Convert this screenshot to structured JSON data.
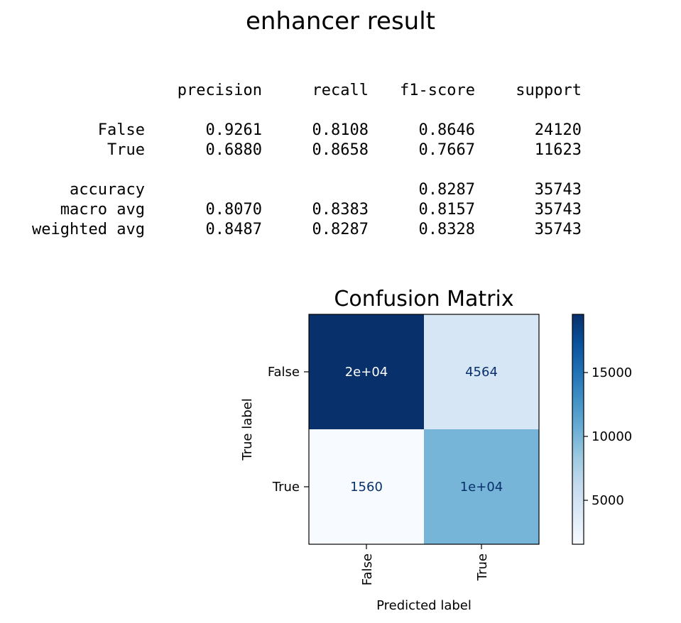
{
  "figure_title": "enhancer result",
  "report": {
    "headers": [
      "precision",
      "recall",
      "f1-score",
      "support"
    ],
    "rows": [
      {
        "label": "False",
        "values": [
          "0.9261",
          "0.8108",
          "0.8646",
          "24120"
        ]
      },
      {
        "label": "True",
        "values": [
          "0.6880",
          "0.8658",
          "0.7667",
          "11623"
        ]
      },
      {
        "label": "",
        "values": [
          "",
          "",
          "",
          ""
        ]
      },
      {
        "label": "accuracy",
        "values": [
          "",
          "",
          "0.8287",
          "35743"
        ]
      },
      {
        "label": "macro avg",
        "values": [
          "0.8070",
          "0.8383",
          "0.8157",
          "35743"
        ]
      },
      {
        "label": "weighted avg",
        "values": [
          "0.8487",
          "0.8287",
          "0.8328",
          "35743"
        ]
      }
    ]
  },
  "chart_data": {
    "type": "heatmap",
    "title": "Confusion Matrix",
    "xlabel": "Predicted label",
    "ylabel": "True label",
    "x_categories": [
      "False",
      "True"
    ],
    "y_categories": [
      "False",
      "True"
    ],
    "values": [
      [
        19556,
        4564
      ],
      [
        1560,
        10063
      ]
    ],
    "cell_labels": [
      [
        "2e+04",
        "4564"
      ],
      [
        "1560",
        "1e+04"
      ]
    ],
    "colormap": "Blues",
    "color_range": [
      1560,
      19556
    ],
    "colorbar_ticks": [
      5000,
      10000,
      15000
    ],
    "colorbar_tick_labels": [
      "5000",
      "10000",
      "15000"
    ]
  }
}
